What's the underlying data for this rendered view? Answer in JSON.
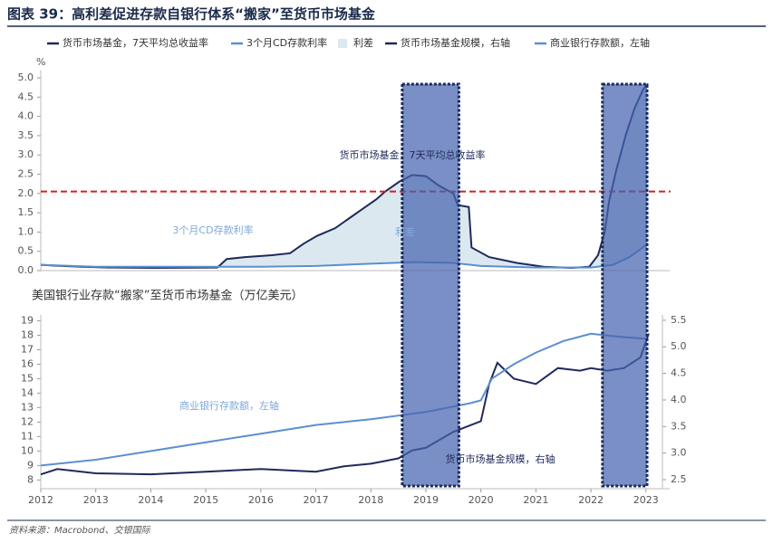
{
  "title": "图表 39：高利差促进存款自银行体系“搬家”至货币市场基金",
  "source": "资料来源：Macrobond、交银国际",
  "highlights": [
    {
      "x": [
        2018.57,
        2019.6
      ]
    },
    {
      "x": [
        2022.21,
        2023.02
      ]
    }
  ],
  "chart_data": [
    {
      "type": "line",
      "ylabel": "%",
      "xlim": [
        2012,
        2023.3
      ],
      "ylim": [
        0,
        5.2
      ],
      "yticks": [
        {
          "value": 0,
          "label": "0.0"
        },
        0.5,
        {
          "value": 1,
          "label": "1.0"
        },
        1.5,
        {
          "value": 2,
          "label": "2.0"
        },
        2.5,
        {
          "value": 3,
          "label": "3.0"
        },
        3.5,
        {
          "value": 4,
          "label": "4.0"
        },
        4.5,
        {
          "value": 5,
          "label": "5.0"
        }
      ],
      "reference_line": {
        "value": 2.05,
        "color": "#d62020"
      },
      "spread": {
        "name": "利差",
        "color": "#dbe8f0"
      },
      "series": [
        {
          "name": "货币市场基金，7天平均总收益率",
          "color": "#1f2a5a",
          "x": [
            2012.0,
            2012.25,
            2012.74,
            2013.24,
            2014.06,
            2015.21,
            2015.38,
            2015.71,
            2016.2,
            2016.53,
            2016.78,
            2017.02,
            2017.35,
            2017.6,
            2017.85,
            2018.1,
            2018.26,
            2018.51,
            2018.75,
            2019.0,
            2019.24,
            2019.5,
            2019.58,
            2019.78,
            2019.83,
            2020.15,
            2020.65,
            2021.14,
            2021.64,
            2021.97,
            2022.13,
            2022.25,
            2022.33,
            2022.46,
            2022.63,
            2022.79,
            2022.95,
            2023.04
          ],
          "values": [
            0.15,
            0.13,
            0.1,
            0.08,
            0.07,
            0.08,
            0.3,
            0.35,
            0.4,
            0.45,
            0.7,
            0.9,
            1.1,
            1.35,
            1.6,
            1.85,
            2.05,
            2.3,
            2.48,
            2.45,
            2.2,
            2.0,
            1.7,
            1.65,
            0.6,
            0.35,
            0.2,
            0.1,
            0.07,
            0.1,
            0.4,
            1.0,
            1.8,
            2.6,
            3.5,
            4.2,
            4.7,
            4.85
          ]
        },
        {
          "name": "3个月CD存款利率",
          "color": "#5b8fd0",
          "x": [
            2012.0,
            2013.0,
            2016.0,
            2017.0,
            2018.0,
            2018.8,
            2019.5,
            2020.0,
            2021.0,
            2022.0,
            2022.4,
            2022.7,
            2023.04
          ],
          "values": [
            0.15,
            0.1,
            0.1,
            0.12,
            0.18,
            0.22,
            0.2,
            0.12,
            0.08,
            0.08,
            0.15,
            0.35,
            0.7
          ]
        }
      ]
    },
    {
      "type": "line",
      "title": "美国银行业存款“搬家”至货币市场基金（万亿美元）",
      "xlim": [
        2012,
        2023.3
      ],
      "ylim": [
        7.4,
        19.4
      ],
      "y2lim": [
        2.33,
        5.6
      ],
      "xticks": [
        2012,
        2013,
        2014,
        2015,
        2016,
        2017,
        2018,
        2019,
        2020,
        2021,
        2022,
        2023
      ],
      "yticks": [
        8,
        9,
        10,
        11,
        12,
        13,
        14,
        15,
        16,
        17,
        18,
        19
      ],
      "y2ticks": [
        {
          "value": 2.5,
          "label": "2.5"
        },
        {
          "value": 3,
          "label": "3.0"
        },
        3.5,
        {
          "value": 4,
          "label": "4.0"
        },
        4.5,
        {
          "value": 5,
          "label": "5.0"
        },
        5.5
      ],
      "series": [
        {
          "name": "货币市场基金规模，右轴",
          "color": "#1f2a5a",
          "axis": "y2",
          "x": [
            2012.0,
            2012.3,
            2013.0,
            2014.0,
            2015.0,
            2016.0,
            2017.0,
            2017.5,
            2018.0,
            2018.5,
            2018.75,
            2019.0,
            2019.5,
            2020.0,
            2020.15,
            2020.3,
            2020.6,
            2021.0,
            2021.4,
            2021.8,
            2022.0,
            2022.3,
            2022.6,
            2022.9,
            2023.05
          ],
          "values": [
            2.6,
            2.7,
            2.62,
            2.6,
            2.65,
            2.7,
            2.65,
            2.75,
            2.8,
            2.9,
            3.05,
            3.1,
            3.4,
            3.6,
            4.3,
            4.7,
            4.4,
            4.3,
            4.6,
            4.55,
            4.6,
            4.55,
            4.6,
            4.8,
            5.25
          ]
        },
        {
          "name": "商业银行存款额，左轴",
          "color": "#5b8fd0",
          "x": [
            2012.0,
            2013.0,
            2014.0,
            2015.0,
            2016.0,
            2017.0,
            2018.0,
            2019.0,
            2019.8,
            2020.0,
            2020.2,
            2020.6,
            2021.0,
            2021.5,
            2022.0,
            2022.5,
            2023.0
          ],
          "values": [
            9.0,
            9.4,
            10.0,
            10.6,
            11.2,
            11.8,
            12.2,
            12.7,
            13.3,
            13.5,
            15.0,
            16.0,
            16.8,
            17.6,
            18.1,
            17.9,
            17.75
          ]
        }
      ]
    }
  ]
}
